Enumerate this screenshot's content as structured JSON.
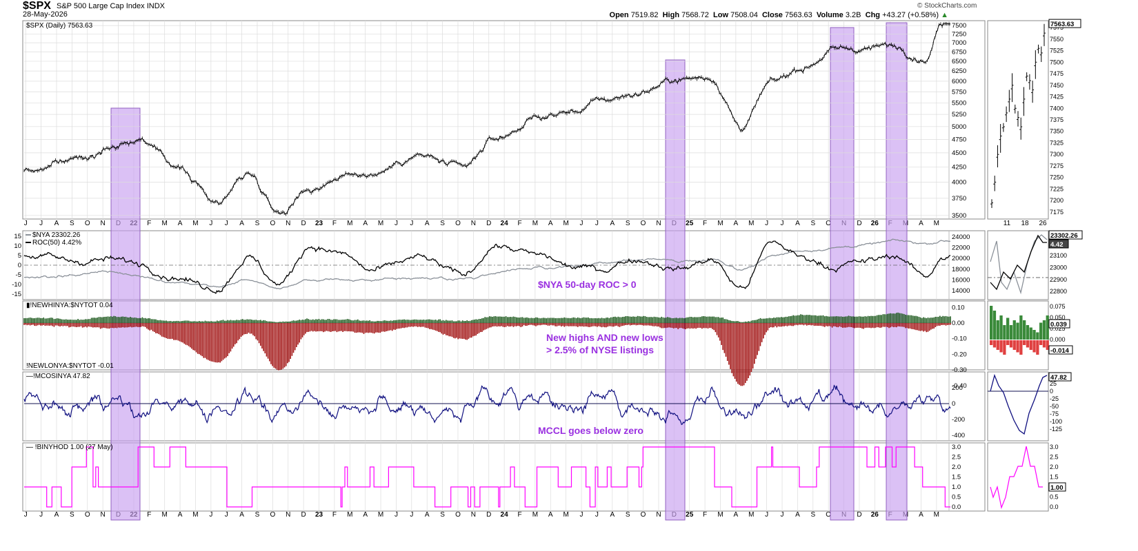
{
  "header": {
    "ticker": "$SPX",
    "name": "S&P 500 Large Cap Index",
    "exchange": "INDX",
    "date": "28-May-2026",
    "open_label": "Open",
    "open": "7519.82",
    "high_label": "High",
    "high": "7568.72",
    "low_label": "Low",
    "low": "7508.04",
    "close_label": "Close",
    "close": "7563.63",
    "volume_label": "Volume",
    "volume": "3.2B",
    "chg_label": "Chg",
    "chg": "+43.27 (+0.58%)",
    "credit": "© StockCharts.com"
  },
  "colors": {
    "price": "#000000",
    "nya": "#8a9098",
    "roc": "#000000",
    "highs": "#1e5a1e",
    "lows": "#a01010",
    "mcclellan": "#101080",
    "binyhod": "#ff00ff",
    "highlight": "#c8a0f0",
    "grid": "#dcdcdc"
  },
  "annotations": [
    "$NYA 50-day ROC > 0",
    "New highs AND new lows",
    "> 2.5% of NYSE listings",
    "MCCL goes below zero"
  ],
  "chart_data": [
    {
      "type": "line",
      "panel": "price",
      "legend": "$SPX (Daily) 7563.63",
      "last_value_label": "7563.63",
      "y_scale": "log",
      "ylim": [
        3450,
        7650
      ],
      "y_ticks": [
        3500,
        3750,
        4000,
        4250,
        4500,
        4750,
        5000,
        5250,
        5500,
        5750,
        6000,
        6250,
        6500,
        6750,
        7000,
        7250,
        7500
      ],
      "x_tick_labels": [
        "J",
        "J",
        "A",
        "S",
        "O",
        "N",
        "D",
        "22",
        "F",
        "M",
        "A",
        "M",
        "J",
        "J",
        "A",
        "S",
        "O",
        "N",
        "D",
        "23",
        "F",
        "M",
        "A",
        "M",
        "J",
        "J",
        "A",
        "S",
        "O",
        "N",
        "D",
        "24",
        "F",
        "M",
        "A",
        "M",
        "J",
        "J",
        "A",
        "S",
        "O",
        "N",
        "D",
        "25",
        "F",
        "M",
        "A",
        "M",
        "J",
        "J",
        "A",
        "S",
        "O",
        "N",
        "D",
        "26",
        "F",
        "M",
        "A",
        "M"
      ],
      "x": [
        "2021-06",
        "2021-09",
        "2021-11",
        "2022-01",
        "2022-03",
        "2022-06",
        "2022-08",
        "2022-10",
        "2022-12",
        "2023-02",
        "2023-04",
        "2023-07",
        "2023-10",
        "2023-12",
        "2024-03",
        "2024-05",
        "2024-07",
        "2024-09",
        "2024-12",
        "2025-02",
        "2025-04",
        "2025-06",
        "2025-08",
        "2025-10",
        "2025-12",
        "2026-02",
        "2026-04",
        "2026-05"
      ],
      "values": [
        4200,
        4400,
        4650,
        4780,
        4300,
        3700,
        4150,
        3580,
        3900,
        4100,
        4150,
        4450,
        4200,
        4750,
        5200,
        5300,
        5550,
        5700,
        6050,
        6100,
        5000,
        5950,
        6350,
        6800,
        6850,
        6900,
        6600,
        7563
      ]
    },
    {
      "type": "line",
      "panel": "nya-roc",
      "series": [
        {
          "name": "$NYA 23302.26",
          "axis": "right",
          "values": [
            16500,
            17000,
            17500,
            16800,
            15500,
            14800,
            15800,
            14500,
            16000,
            16200,
            16000,
            16500,
            16200,
            17500,
            18200,
            18500,
            19000,
            19800,
            19500,
            20000,
            18000,
            20500,
            21500,
            22000,
            22500,
            23200,
            22800,
            23302
          ]
        },
        {
          "name": "ROC(50) 4.42%",
          "axis": "left",
          "values": [
            5,
            2,
            3,
            1,
            -6,
            -12,
            4,
            -10,
            10,
            6,
            -3,
            4,
            -5,
            10,
            5,
            -1,
            -2,
            3,
            -2,
            3,
            -12,
            12,
            4,
            -1,
            2,
            5,
            -6,
            4.42
          ]
        }
      ],
      "x": [
        "2021-06",
        "2021-09",
        "2021-11",
        "2022-01",
        "2022-03",
        "2022-06",
        "2022-08",
        "2022-10",
        "2022-12",
        "2023-02",
        "2023-04",
        "2023-07",
        "2023-10",
        "2023-12",
        "2024-03",
        "2024-05",
        "2024-07",
        "2024-09",
        "2024-12",
        "2025-02",
        "2025-04",
        "2025-06",
        "2025-08",
        "2025-10",
        "2025-12",
        "2026-02",
        "2026-04",
        "2026-05"
      ],
      "left_ticks": [
        -15,
        -10,
        -5,
        0,
        5,
        10,
        15
      ],
      "right_ticks": [
        14000,
        16000,
        18000,
        20000,
        22000,
        24000
      ],
      "last_value_labels": [
        "23302.26",
        "4.42"
      ],
      "inset_ticks": [
        22800,
        22900,
        23000,
        23100,
        23200
      ]
    },
    {
      "type": "bar",
      "panel": "new-highs-lows",
      "series": [
        {
          "name": "!NEWHINYA:$NYTOT 0.04",
          "values": [
            0.03,
            0.02,
            0.04,
            0.03,
            0.01,
            0.01,
            0.02,
            0.005,
            0.02,
            0.02,
            0.01,
            0.02,
            0.01,
            0.04,
            0.03,
            0.03,
            0.03,
            0.04,
            0.03,
            0.04,
            0.005,
            0.03,
            0.05,
            0.04,
            0.04,
            0.06,
            0.03,
            0.04
          ]
        },
        {
          "name": "!NEWLONYA:$NYTOT -0.01",
          "values": [
            -0.01,
            -0.02,
            -0.03,
            -0.02,
            -0.1,
            -0.25,
            -0.06,
            -0.3,
            -0.05,
            -0.05,
            -0.06,
            -0.02,
            -0.1,
            -0.02,
            -0.01,
            -0.02,
            -0.02,
            -0.01,
            -0.03,
            -0.03,
            -0.4,
            -0.02,
            -0.01,
            -0.02,
            -0.03,
            -0.02,
            -0.05,
            -0.01
          ]
        }
      ],
      "x": [
        "2021-06",
        "2021-09",
        "2021-11",
        "2022-01",
        "2022-03",
        "2022-06",
        "2022-08",
        "2022-10",
        "2022-12",
        "2023-02",
        "2023-04",
        "2023-07",
        "2023-10",
        "2023-12",
        "2024-03",
        "2024-05",
        "2024-07",
        "2024-09",
        "2024-12",
        "2025-02",
        "2025-04",
        "2025-06",
        "2025-08",
        "2025-10",
        "2025-12",
        "2026-02",
        "2026-04",
        "2026-05"
      ],
      "y_ticks": [
        0.1,
        0.0,
        -0.1,
        -0.2,
        -0.3,
        -0.4
      ],
      "y_tick_labels": [
        "0.10",
        "0.00",
        "-0.10",
        "-0.20",
        "-0.30",
        "-0.40"
      ],
      "inset_ticks": [
        "0.075",
        "0.050",
        "0.025",
        "0.000",
        "-0.025"
      ],
      "last_value_labels": [
        "0.039",
        "-0.014"
      ]
    },
    {
      "type": "line",
      "panel": "mcclellan",
      "series": [
        {
          "name": "!MCOSINYA 47.82",
          "values": [
            50,
            -80,
            120,
            -200,
            80,
            -250,
            150,
            -300,
            200,
            -100,
            60,
            -120,
            -200,
            180,
            50,
            -150,
            200,
            -100,
            -250,
            150,
            -350,
            180,
            -50,
            100,
            -180,
            -120,
            150,
            47.82
          ]
        }
      ],
      "x": [
        "2021-06",
        "2021-09",
        "2021-11",
        "2022-01",
        "2022-03",
        "2022-06",
        "2022-08",
        "2022-10",
        "2022-12",
        "2023-02",
        "2023-04",
        "2023-07",
        "2023-10",
        "2023-12",
        "2024-03",
        "2024-05",
        "2024-07",
        "2024-09",
        "2024-12",
        "2025-02",
        "2025-04",
        "2025-06",
        "2025-08",
        "2025-10",
        "2025-12",
        "2026-02",
        "2026-04",
        "2026-05"
      ],
      "y_ticks": [
        200,
        0,
        -200,
        -400
      ],
      "inset_ticks": [
        25,
        0,
        -25,
        -50,
        -75,
        -100,
        -125
      ],
      "last_value_label": "47.82"
    },
    {
      "type": "line",
      "panel": "binyhod",
      "series": [
        {
          "name": "!BINYHOD 1.00 (27 May)",
          "values": [
            1,
            2,
            1,
            3,
            2,
            1,
            0,
            2,
            1,
            1,
            2,
            1,
            0,
            1,
            2,
            1,
            2,
            2,
            3,
            2,
            0,
            2,
            1,
            3,
            2,
            3,
            1,
            1
          ]
        }
      ],
      "x": [
        "2021-06",
        "2021-09",
        "2021-11",
        "2022-01",
        "2022-03",
        "2022-06",
        "2022-08",
        "2022-10",
        "2022-12",
        "2023-02",
        "2023-04",
        "2023-07",
        "2023-10",
        "2023-12",
        "2024-03",
        "2024-05",
        "2024-07",
        "2024-09",
        "2024-12",
        "2025-02",
        "2025-04",
        "2025-06",
        "2025-08",
        "2025-10",
        "2025-12",
        "2026-02",
        "2026-04",
        "2026-05"
      ],
      "y_ticks": [
        0,
        0.5,
        1,
        1.5,
        2,
        2.5,
        3
      ],
      "y_tick_labels": [
        "0.0",
        "0.5",
        "1.0",
        "1.5",
        "2.0",
        "2.5",
        "3.0"
      ],
      "last_value_label": "1.00"
    },
    {
      "type": "bar",
      "panel": "price-inset",
      "y_ticks": [
        7175,
        7200,
        7225,
        7250,
        7275,
        7300,
        7325,
        7350,
        7375,
        7400,
        7425,
        7450,
        7475,
        7500,
        7525,
        7550,
        7575
      ],
      "x_tick_labels": [
        "11",
        "18",
        "26"
      ],
      "values": [
        7195,
        7240,
        7300,
        7340,
        7360,
        7390,
        7420,
        7450,
        7400,
        7380,
        7360,
        7420,
        7470,
        7460,
        7440,
        7500,
        7530,
        7520,
        7563
      ]
    }
  ]
}
